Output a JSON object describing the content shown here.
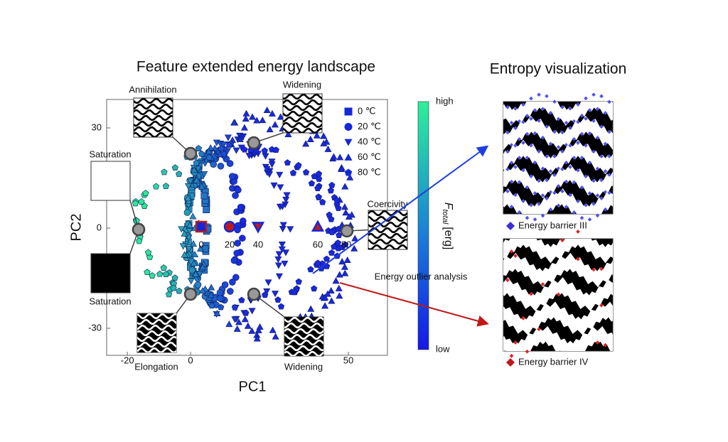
{
  "left_title": "Feature extended energy landscape",
  "right_title": "Entropy visualization",
  "plot": {
    "x_label": "PC1",
    "y_label": "PC2",
    "xticks": [
      -20,
      0,
      50
    ],
    "yticks": [
      30,
      0,
      -30
    ]
  },
  "legend": [
    "0 ℃",
    "20 ℃",
    "40 ℃",
    "60 ℃",
    "80 ℃"
  ],
  "mean_labels": [
    "0",
    "20",
    "40",
    "60",
    "80"
  ],
  "states": [
    "Annihilation",
    "Widening",
    "Saturation",
    "Coercivity",
    "Saturation",
    "Elongation",
    "Widening"
  ],
  "colorbar": {
    "high": "high",
    "low": "low",
    "symbol": "F",
    "subscript": "total",
    "unit": "[erg]"
  },
  "annotation": "Energy outlier analysis",
  "panels": [
    "Energy barrier III",
    "Energy barrier IV"
  ]
}
